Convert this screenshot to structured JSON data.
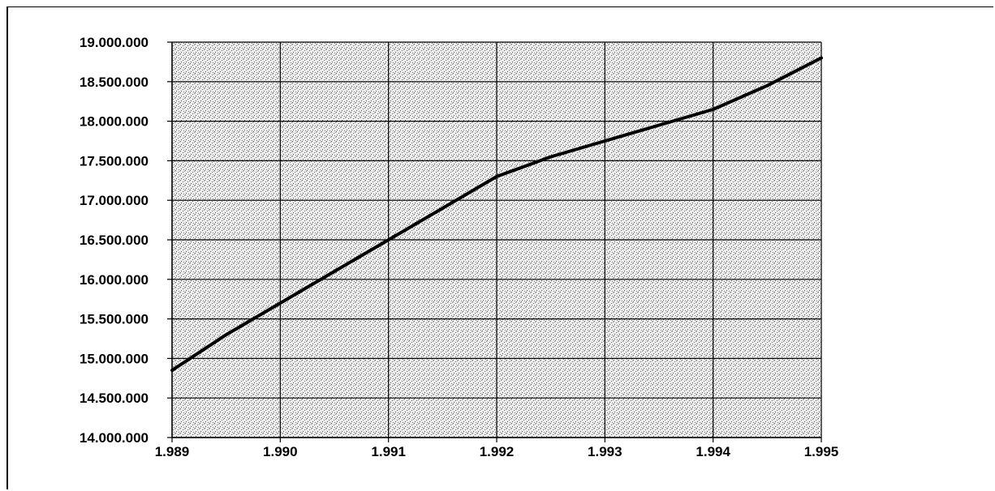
{
  "chart_data": {
    "type": "line",
    "title": "",
    "xlabel": "",
    "ylabel": "",
    "x": [
      1989,
      1989.5,
      1990,
      1990.5,
      1991,
      1991.5,
      1992,
      1992.5,
      1993,
      1993.5,
      1994,
      1994.5,
      1995
    ],
    "series": [
      {
        "values": [
          14850000,
          15300000,
          15700000,
          16100000,
          16500000,
          16900000,
          17300000,
          17550000,
          17750000,
          17950000,
          18150000,
          18450000,
          18800000
        ]
      }
    ],
    "xlim": [
      1989,
      1995
    ],
    "ylim": [
      14000000,
      19000000
    ],
    "x_ticks": [
      1989,
      1990,
      1991,
      1992,
      1993,
      1994,
      1995
    ],
    "x_tick_labels": [
      "1.989",
      "1.990",
      "1.991",
      "1.992",
      "1.993",
      "1.994",
      "1.995"
    ],
    "y_ticks": [
      14000000,
      14500000,
      15000000,
      15500000,
      16000000,
      16500000,
      17000000,
      17500000,
      18000000,
      18500000,
      19000000
    ],
    "y_tick_labels": [
      "14.000.000",
      "14.500.000",
      "15.000.000",
      "15.500.000",
      "16.000.000",
      "16.500.000",
      "17.000.000",
      "17.500.000",
      "18.000.000",
      "18.500.000",
      "19.000.000"
    ],
    "grid": true,
    "plot_background": "stippled gray",
    "colors": {
      "line": "#000000",
      "grid": "#000000",
      "plot_fill": "#bdbdbd"
    }
  }
}
